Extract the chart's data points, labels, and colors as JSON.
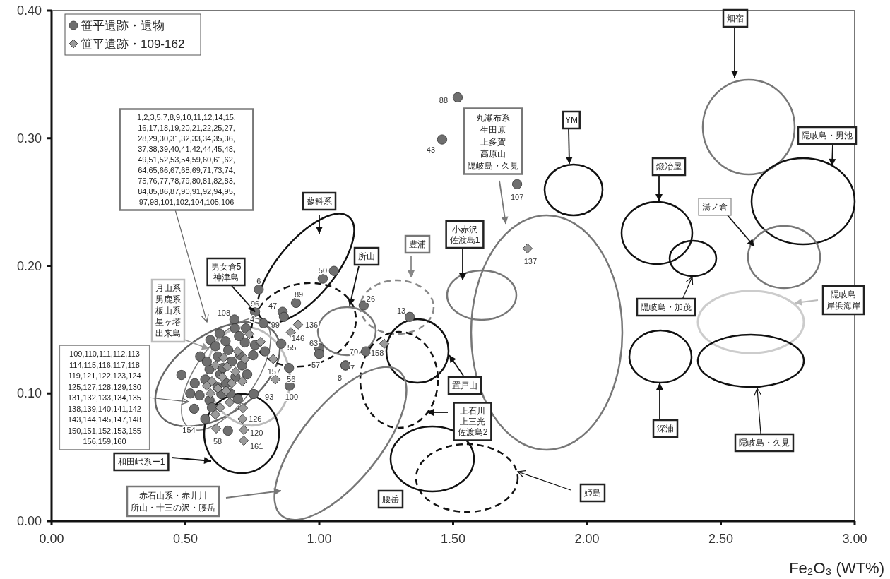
{
  "chart_data": {
    "type": "scatter",
    "xlabel": "Fe₂O₃ (WT%)",
    "xlim": [
      0,
      3
    ],
    "ylim": [
      0,
      0.4
    ],
    "xticks": [
      {
        "value": 0,
        "label": "0.00"
      },
      {
        "value": 0.5,
        "label": "0.50"
      },
      {
        "value": 1,
        "label": "1.00"
      },
      {
        "value": 1.5,
        "label": "1.50"
      },
      {
        "value": 2,
        "label": "2.00"
      },
      {
        "value": 2.5,
        "label": "2.50"
      },
      {
        "value": 3,
        "label": "3.00"
      }
    ],
    "yticks": [
      {
        "value": 0,
        "label": "0.00"
      },
      {
        "value": 0.1,
        "label": "0.10"
      },
      {
        "value": 0.2,
        "label": "0.20"
      },
      {
        "value": 0.3,
        "label": "0.30"
      },
      {
        "value": 0.4,
        "label": "0.40"
      }
    ],
    "legend": "top left",
    "series": [
      {
        "name": "笹平遺跡・遺物",
        "color": "#6e6e6e",
        "marker": "circle",
        "x": [
          1.517,
          1.459,
          1.739,
          1.013,
          0.913,
          1.166,
          1.338,
          1.174,
          1.0,
          1.0,
          1.098,
          1.098,
          0.774,
          0.76,
          0.863,
          0.726,
          0.683,
          0.791,
          0.858,
          0.887,
          0.889,
          0.755,
          0.574,
          0.868,
          0.659,
          0.485,
          1.055,
          0.628,
          0.593,
          0.65,
          0.685,
          0.722,
          0.753,
          0.555,
          0.621,
          0.66,
          0.704,
          0.535,
          0.518,
          0.553,
          0.533,
          0.574,
          0.59,
          0.63,
          0.652,
          0.687,
          0.731,
          0.59,
          0.696,
          0.634,
          0.599,
          0.673,
          0.797,
          0.612,
          0.7,
          0.76,
          0.64,
          0.58,
          0.668,
          0.712,
          0.62
        ],
        "values": [
          0.332,
          0.299,
          0.264,
          0.19,
          0.171,
          0.169,
          0.16,
          0.133,
          0.1355,
          0.131,
          0.122,
          0.122,
          0.1815,
          0.164,
          0.164,
          0.151,
          0.158,
          0.155,
          0.139,
          0.12,
          0.106,
          0.0996,
          0.08,
          0.16,
          0.0708,
          0.1145,
          0.196,
          0.147,
          0.142,
          0.141,
          0.151,
          0.14,
          0.13,
          0.129,
          0.129,
          0.134,
          0.13,
          0.108,
          0.1,
          0.0985,
          0.088,
          0.111,
          0.119,
          0.115,
          0.108,
          0.113,
          0.115,
          0.0946,
          0.0957,
          0.0996,
          0.089,
          0.125,
          0.133,
          0.137,
          0.145,
          0.138,
          0.12,
          0.125,
          0.1,
          0.122,
          0.105
        ]
      },
      {
        "name": "笹平遺跡・109-162",
        "color": "#9a9a9a",
        "marker": "diamond",
        "x": [
          1.778,
          0.921,
          0.894,
          1.243,
          0.836,
          0.713,
          0.718,
          0.718,
          0.615,
          0.779,
          0.828,
          0.722,
          0.695,
          0.612,
          0.656,
          0.687,
          0.638,
          0.599,
          0.673,
          0.621,
          0.652,
          0.594,
          0.713,
          0.665,
          0.63,
          0.612,
          0.715,
          null,
          0.58,
          0.643,
          0.739,
          0.781
        ],
        "values": [
          0.2136,
          0.154,
          0.148,
          0.139,
          0.111,
          0.08,
          0.0714,
          0.063,
          0.0725,
          0.14,
          0.127,
          0.127,
          0.133,
          0.122,
          0.121,
          0.117,
          0.113,
          0.1095,
          0.108,
          0.104,
          0.102,
          0.1,
          0.1095,
          0.093,
          0.089,
          0.0835,
          0.0885,
          null,
          0.106,
          0.128,
          0.1465,
          0.1405
        ]
      }
    ],
    "annotations": [
      "1,2,3,5,7,8,9,10,11,12,14,15,\n16,17,18,19,20,21,22,25,27,\n28,29,30,31,32,33,34,35,36,\n37,38,39,40,41,42,44,45,48,\n49,51,52,53,54,59,60,61,62,\n64,65,66,67,68,69,71,73,74,\n75,76,77,78,79,80,81,82,83,\n84,85,86,87,90,91,92,94,95,\n97,98,101,102,104,105,106",
      "月山系男鹿系板山系星ヶ塔出来島",
      "109,110,111,112,113\n114,115,116,117,118\n119,121,122,123,124\n125,127,128,129,130\n131,132,133,134,135\n138,139,140,141,142\n143,144,145,147,148\n150,151,152,153,155\n156,159,160",
      "和田峠系ー1",
      "赤石山系・赤井川所山・十三の沢・腰岳",
      {
        "text": "男女倉5神津島",
        "x": 0.76,
        "y": 0.164
      },
      "蓼科系",
      "所山",
      "豊浦",
      "小赤沢佐渡島1",
      "丸瀬布系生田原上多賀高原山隠岐島・久見",
      "YM",
      "置戸山",
      "上石川上三光佐渡島2",
      "腰岳",
      "姫島",
      "畑宿",
      "隠岐島・男池",
      "鍛冶屋",
      "湯ノ倉",
      "隠岐島・加茂",
      "隠岐島岸浜海岸",
      "深浦",
      "隠岐島・久見",
      {
        "text": "88",
        "x": 1.517,
        "y": 0.332
      },
      {
        "text": "43",
        "x": 1.459,
        "y": 0.299
      },
      {
        "text": "107",
        "x": 1.739,
        "y": 0.264
      },
      {
        "text": "50",
        "x": 1.013,
        "y": 0.19
      },
      {
        "text": "89",
        "x": 0.913,
        "y": 0.171
      },
      {
        "text": "26",
        "x": 1.166,
        "y": 0.169
      },
      {
        "text": "13",
        "x": 1.338,
        "y": 0.16
      },
      {
        "text": "70",
        "x": 1.174,
        "y": 0.133
      },
      {
        "text": "63",
        "x": 1.0,
        "y": 0.1355
      },
      {
        "text": "57",
        "x": 1.0,
        "y": 0.131
      },
      {
        "text": "7",
        "x": 1.098,
        "y": 0.122
      },
      {
        "text": "8",
        "x": 1.098,
        "y": 0.122
      },
      {
        "text": "6",
        "x": 0.774,
        "y": 0.1815
      },
      {
        "text": "96",
        "x": 0.76,
        "y": 0.164
      },
      {
        "text": "47",
        "x": 0.863,
        "y": 0.164
      },
      {
        "text": "4",
        "x": 0.726,
        "y": 0.151
      },
      {
        "text": "108",
        "x": 0.683,
        "y": 0.158
      },
      {
        "text": "99",
        "x": 0.791,
        "y": 0.155
      },
      {
        "text": "55",
        "x": 0.858,
        "y": 0.139
      },
      {
        "text": "56",
        "x": 0.887,
        "y": 0.12
      },
      {
        "text": "100",
        "x": 0.889,
        "y": 0.106
      },
      {
        "text": "93",
        "x": 0.755,
        "y": 0.0996
      },
      {
        "text": "154",
        "x": 0.574,
        "y": 0.08
      },
      {
        "text": "137",
        "x": 1.778,
        "y": 0.2136
      },
      {
        "text": "136",
        "x": 0.921,
        "y": 0.154
      },
      {
        "text": "146",
        "x": 0.894,
        "y": 0.148
      },
      {
        "text": "158",
        "x": 1.243,
        "y": 0.139
      },
      {
        "text": "157",
        "x": 0.836,
        "y": 0.111
      },
      {
        "text": "126",
        "x": 0.713,
        "y": 0.08
      },
      {
        "text": "120",
        "x": 0.718,
        "y": 0.0714
      },
      {
        "text": "161",
        "x": 0.718,
        "y": 0.063
      },
      {
        "text": "58",
        "x": 0.615,
        "y": 0.0725
      }
    ]
  }
}
